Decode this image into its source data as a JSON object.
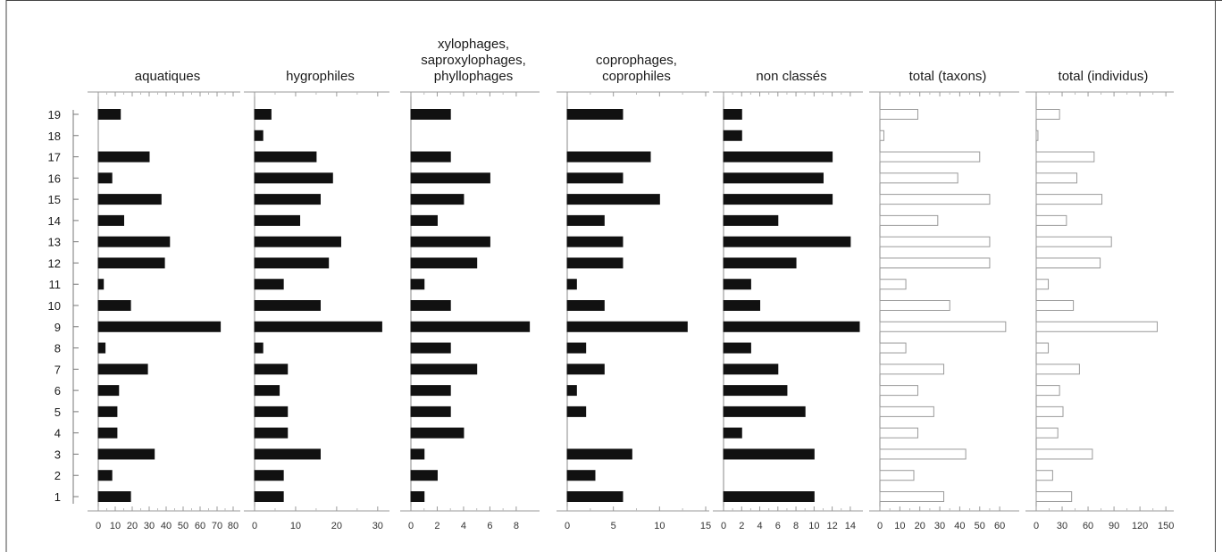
{
  "chart_data": {
    "type": "bar",
    "orientation": "horizontal",
    "categories": [
      "1",
      "2",
      "3",
      "4",
      "5",
      "6",
      "7",
      "8",
      "9",
      "10",
      "11",
      "12",
      "13",
      "14",
      "15",
      "16",
      "17",
      "18",
      "19"
    ],
    "panels": [
      {
        "title_lines": [
          "aquatiques"
        ],
        "xlim": [
          0,
          80
        ],
        "ticks": [
          0,
          10,
          20,
          30,
          40,
          50,
          60,
          70,
          80
        ],
        "tick_labels": [
          "0",
          "10",
          "20",
          "30",
          "40",
          "50",
          "60",
          "70",
          "80"
        ],
        "scale": "custom-compressed",
        "fill": "black",
        "values": [
          19,
          8,
          33,
          11,
          11,
          12,
          29,
          4,
          72,
          19,
          3,
          39,
          42,
          15,
          37,
          8,
          30,
          0,
          13
        ]
      },
      {
        "title_lines": [
          "hygrophiles"
        ],
        "xlim": [
          0,
          32
        ],
        "ticks": [
          0,
          10,
          20,
          30
        ],
        "tick_labels": [
          "0",
          "10",
          "20",
          "30"
        ],
        "scale": "linear",
        "fill": "black",
        "values": [
          7,
          7,
          16,
          8,
          8,
          6,
          8,
          2,
          31,
          16,
          7,
          18,
          21,
          11,
          16,
          19,
          15,
          2,
          4
        ]
      },
      {
        "title_lines": [
          "xylophages,",
          "saproxylophages,",
          "phyllophages"
        ],
        "xlim": [
          0,
          9.5
        ],
        "ticks": [
          0,
          2,
          4,
          6,
          8
        ],
        "tick_labels": [
          "0",
          "2",
          "4",
          "6",
          "8"
        ],
        "scale": "linear",
        "fill": "black",
        "values": [
          1,
          2,
          1,
          4,
          3,
          3,
          5,
          3,
          9,
          3,
          1,
          5,
          6,
          2,
          4,
          6,
          3,
          0,
          3
        ]
      },
      {
        "title_lines": [
          "coprophages,",
          "coprophiles"
        ],
        "xlim": [
          0,
          15
        ],
        "ticks": [
          0,
          5,
          10,
          15
        ],
        "tick_labels": [
          "0",
          "5",
          "10",
          "15"
        ],
        "scale": "linear",
        "fill": "black",
        "values": [
          6,
          3,
          7,
          0,
          2,
          1,
          4,
          2,
          13,
          4,
          1,
          6,
          6,
          4,
          10,
          6,
          9,
          0,
          6
        ]
      },
      {
        "title_lines": [
          "non classés"
        ],
        "xlim": [
          0,
          15
        ],
        "ticks": [
          0,
          2,
          4,
          6,
          8,
          10,
          12,
          14
        ],
        "tick_labels": [
          "0",
          "2",
          "4",
          "6",
          "8",
          "10",
          "12",
          "14"
        ],
        "scale": "linear",
        "fill": "black",
        "values": [
          10,
          0,
          10,
          2,
          9,
          7,
          6,
          3,
          15,
          4,
          3,
          8,
          14,
          6,
          12,
          11,
          12,
          2,
          2
        ]
      },
      {
        "title_lines": [
          "total (taxons)"
        ],
        "xlim": [
          0,
          68
        ],
        "ticks": [
          0,
          10,
          20,
          30,
          40,
          50,
          60
        ],
        "tick_labels": [
          "0",
          "10",
          "20",
          "30",
          "40",
          "50",
          "60"
        ],
        "scale": "linear",
        "fill": "white",
        "values": [
          32,
          17,
          43,
          19,
          27,
          19,
          32,
          13,
          63,
          35,
          13,
          55,
          55,
          29,
          55,
          39,
          50,
          2,
          19
        ]
      },
      {
        "title_lines": [
          "total (individus)"
        ],
        "xlim": [
          0,
          155
        ],
        "ticks": [
          0,
          30,
          60,
          90,
          120,
          150
        ],
        "tick_labels": [
          "0",
          "30",
          "60",
          "90",
          "120",
          "150"
        ],
        "scale": "linear",
        "fill": "white",
        "values": [
          41,
          19,
          65,
          25,
          31,
          27,
          50,
          14,
          140,
          43,
          14,
          74,
          87,
          35,
          76,
          47,
          67,
          2,
          27
        ]
      }
    ]
  }
}
